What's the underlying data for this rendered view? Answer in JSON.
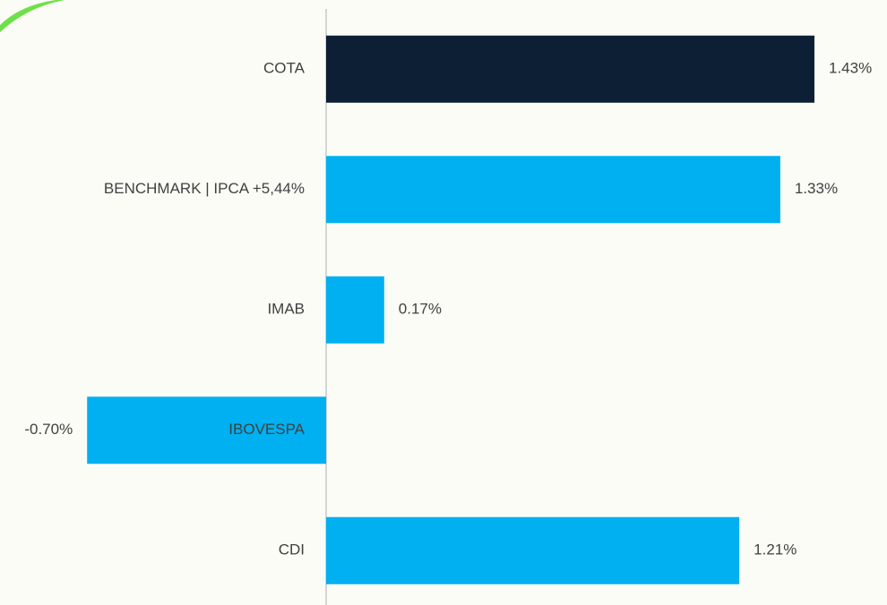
{
  "chart_data": {
    "type": "hbar",
    "categories": [
      "COTA",
      "BENCHMARK | IPCA +5,44%",
      "IMAB",
      "IBOVESPA",
      "CDI"
    ],
    "values": [
      1.43,
      1.33,
      0.17,
      -0.7,
      1.21
    ],
    "value_labels": [
      "1.43%",
      "1.33%",
      "0.17%",
      "-0.70%",
      "1.21%"
    ],
    "colors": [
      "#0d1f35",
      "#00b0f0",
      "#00b0f0",
      "#00b0f0",
      "#00b0f0"
    ]
  }
}
